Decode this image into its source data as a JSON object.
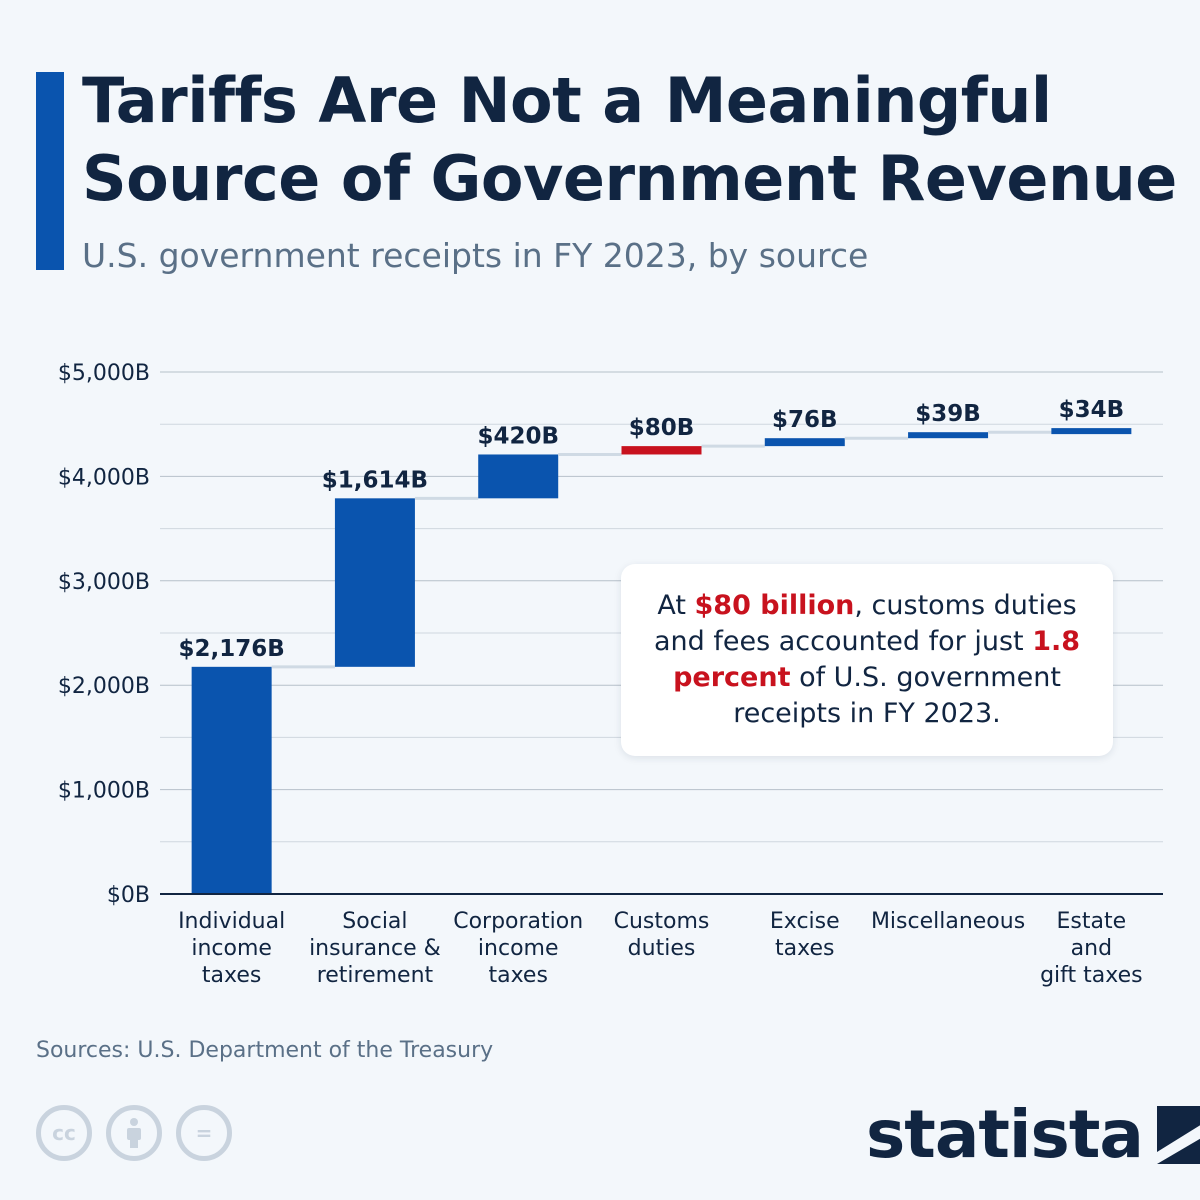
{
  "header": {
    "title": "Tariffs Are Not a Meaningful Source of Government Revenue",
    "subtitle": "U.S. government receipts in FY 2023, by source"
  },
  "colors": {
    "accent": "#0a54ae",
    "bar": "#0a54ae",
    "highlight": "#c8121e",
    "text": "#112541",
    "muted": "#5a7087"
  },
  "chart_data": {
    "type": "bar",
    "subtype": "waterfall",
    "categories": [
      [
        "Individual",
        "income",
        "taxes"
      ],
      [
        "Social",
        "insurance &",
        "retirement"
      ],
      [
        "Corporation",
        "income",
        "taxes"
      ],
      [
        "Customs",
        "duties"
      ],
      [
        "Excise",
        "taxes"
      ],
      [
        "Miscellaneous"
      ],
      [
        "Estate",
        "and",
        "gift taxes"
      ]
    ],
    "values": [
      2176,
      1614,
      420,
      80,
      76,
      39,
      34
    ],
    "value_labels": [
      "$2,176B",
      "$1,614B",
      "$420B",
      "$80B",
      "$76B",
      "$39B",
      "$34B"
    ],
    "highlight_index": 3,
    "ylim": [
      0,
      5000
    ],
    "yticks": [
      0,
      1000,
      2000,
      3000,
      4000,
      5000
    ],
    "ytick_labels": [
      "$0B",
      "$1,000B",
      "$2,000B",
      "$3,000B",
      "$4,000B",
      "$5,000B"
    ],
    "grid": true
  },
  "callout": {
    "t1": "At ",
    "h1": "$80 billion",
    "t2": ", customs duties and fees accounted for just ",
    "h2": "1.8 percent",
    "t3": " of U.S. government receipts in FY 2023."
  },
  "footer": {
    "sources": "Sources: U.S. Department of the Treasury",
    "logo_text": "statista",
    "icons": [
      "cc-icon",
      "attribution-icon",
      "no-derivatives-icon"
    ],
    "icon_glyphs": [
      "cc",
      "i",
      "="
    ]
  }
}
